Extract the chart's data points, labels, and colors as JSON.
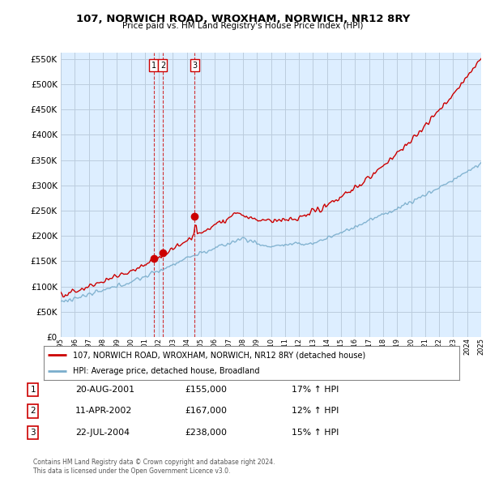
{
  "title": "107, NORWICH ROAD, WROXHAM, NORWICH, NR12 8RY",
  "subtitle": "Price paid vs. HM Land Registry's House Price Index (HPI)",
  "legend_line1": "107, NORWICH ROAD, WROXHAM, NORWICH, NR12 8RY (detached house)",
  "legend_line2": "HPI: Average price, detached house, Broadland",
  "copyright": "Contains HM Land Registry data © Crown copyright and database right 2024.\nThis data is licensed under the Open Government Licence v3.0.",
  "transactions": [
    {
      "num": 1,
      "date": "20-AUG-2001",
      "price": "£155,000",
      "hpi": "17% ↑ HPI",
      "year": 2001.64,
      "value": 155000
    },
    {
      "num": 2,
      "date": "11-APR-2002",
      "price": "£167,000",
      "hpi": "12% ↑ HPI",
      "year": 2002.28,
      "value": 167000
    },
    {
      "num": 3,
      "date": "22-JUL-2004",
      "price": "£238,000",
      "hpi": "15% ↑ HPI",
      "year": 2004.56,
      "value": 238000
    }
  ],
  "ylim": [
    0,
    562500
  ],
  "yticks": [
    0,
    50000,
    100000,
    150000,
    200000,
    250000,
    300000,
    350000,
    400000,
    450000,
    500000,
    550000
  ],
  "red_color": "#cc0000",
  "blue_color": "#7aaecc",
  "chart_bg": "#ddeeff",
  "bg_color": "#ffffff",
  "grid_color": "#bbccdd"
}
